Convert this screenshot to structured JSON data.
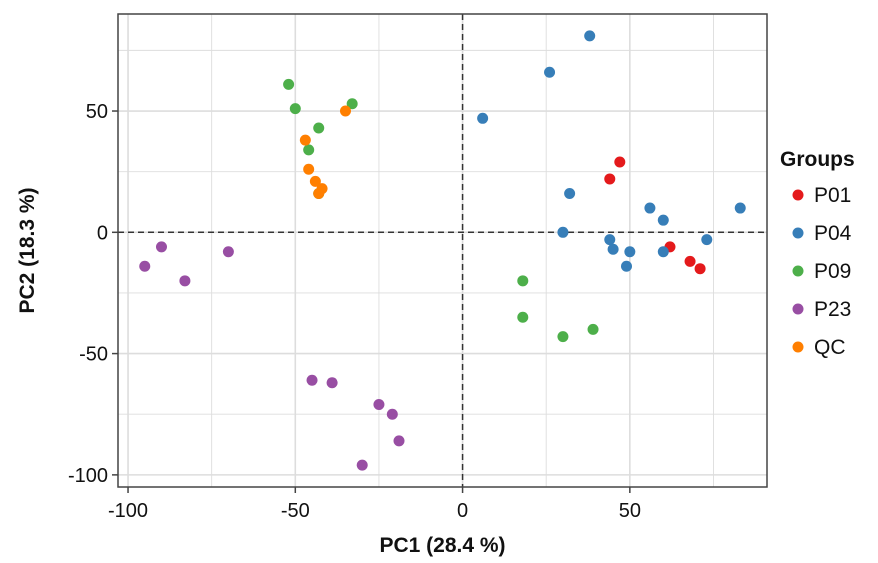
{
  "chart_data": {
    "type": "scatter",
    "xlabel": "PC1 (28.4 %)",
    "ylabel": "PC2 (18.3 %)",
    "xlim": [
      -103,
      91
    ],
    "ylim": [
      -105,
      90
    ],
    "xticks": [
      -100,
      -50,
      0,
      50
    ],
    "yticks": [
      -100,
      -50,
      0,
      50
    ],
    "grid": true,
    "reference_lines": {
      "x": 0,
      "y": 0,
      "style": "dashed"
    },
    "legend": {
      "title": "Groups",
      "position": "right"
    },
    "series": [
      {
        "name": "P01",
        "color": "#E41A1C",
        "points": [
          [
            47,
            29
          ],
          [
            44,
            22
          ],
          [
            62,
            -6
          ],
          [
            68,
            -12
          ],
          [
            71,
            -15
          ]
        ]
      },
      {
        "name": "P04",
        "color": "#377EB8",
        "points": [
          [
            38,
            81
          ],
          [
            26,
            66
          ],
          [
            6,
            47
          ],
          [
            32,
            16
          ],
          [
            30,
            0
          ],
          [
            44,
            -3
          ],
          [
            45,
            -7
          ],
          [
            49,
            -14
          ],
          [
            50,
            -8
          ],
          [
            56,
            10
          ],
          [
            60,
            5
          ],
          [
            60,
            -8
          ],
          [
            73,
            -3
          ],
          [
            83,
            10
          ]
        ]
      },
      {
        "name": "P09",
        "color": "#4DAF4A",
        "points": [
          [
            -52,
            61
          ],
          [
            -50,
            51
          ],
          [
            -33,
            53
          ],
          [
            -43,
            43
          ],
          [
            -46,
            34
          ],
          [
            -43,
            16
          ],
          [
            18,
            -20
          ],
          [
            18,
            -35
          ],
          [
            30,
            -43
          ],
          [
            39,
            -40
          ]
        ]
      },
      {
        "name": "P23",
        "color": "#984EA3",
        "points": [
          [
            -95,
            -14
          ],
          [
            -90,
            -6
          ],
          [
            -83,
            -20
          ],
          [
            -70,
            -8
          ],
          [
            -45,
            -61
          ],
          [
            -39,
            -62
          ],
          [
            -25,
            -71
          ],
          [
            -21,
            -75
          ],
          [
            -19,
            -86
          ],
          [
            -30,
            -96
          ]
        ]
      },
      {
        "name": "QC",
        "color": "#FF7F00",
        "points": [
          [
            -35,
            50
          ],
          [
            -47,
            38
          ],
          [
            -46,
            26
          ],
          [
            -44,
            21
          ],
          [
            -42,
            18
          ],
          [
            -43,
            16
          ]
        ]
      }
    ]
  }
}
